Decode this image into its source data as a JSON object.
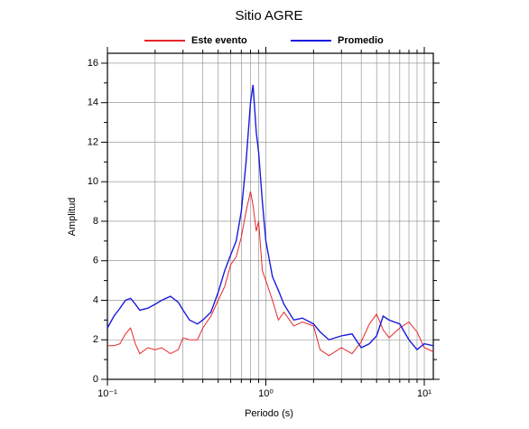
{
  "chart_data": {
    "type": "line",
    "title": "Sitio AGRE",
    "x_label": "Periodo (s)",
    "y_label": "Amplitud",
    "x": [
      0.1,
      0.11,
      0.12,
      0.13,
      0.14,
      0.15,
      0.16,
      0.18,
      0.2,
      0.22,
      0.25,
      0.28,
      0.3,
      0.33,
      0.37,
      0.4,
      0.45,
      0.5,
      0.55,
      0.6,
      0.65,
      0.7,
      0.75,
      0.8,
      0.83,
      0.87,
      0.9,
      0.95,
      1.0,
      1.1,
      1.2,
      1.3,
      1.5,
      1.7,
      2.0,
      2.2,
      2.5,
      3.0,
      3.5,
      4.0,
      4.5,
      5.0,
      5.5,
      6.0,
      7.0,
      8.0,
      9.0,
      10.0,
      11.4
    ],
    "series": [
      {
        "name": "Este evento",
        "color": "#e8262a",
        "values": [
          1.7,
          1.7,
          1.8,
          2.3,
          2.6,
          1.8,
          1.3,
          1.6,
          1.5,
          1.6,
          1.3,
          1.5,
          2.1,
          2.0,
          2.0,
          2.6,
          3.2,
          4.0,
          4.7,
          5.8,
          6.2,
          7.2,
          8.5,
          9.5,
          8.8,
          7.5,
          8.0,
          5.5,
          5.0,
          4.0,
          3.0,
          3.4,
          2.7,
          2.9,
          2.7,
          1.5,
          1.2,
          1.6,
          1.3,
          1.9,
          2.8,
          3.3,
          2.5,
          2.1,
          2.6,
          2.9,
          2.4,
          1.6,
          1.4
        ]
      },
      {
        "name": "Promedio",
        "color": "#1a1adf",
        "values": [
          2.6,
          3.2,
          3.6,
          4.0,
          4.1,
          3.8,
          3.5,
          3.6,
          3.8,
          4.0,
          4.2,
          3.9,
          3.5,
          3.0,
          2.8,
          3.0,
          3.4,
          4.4,
          5.5,
          6.3,
          7.0,
          8.5,
          11.0,
          14.0,
          14.9,
          12.5,
          11.5,
          9.0,
          7.0,
          5.2,
          4.5,
          3.8,
          3.0,
          3.1,
          2.8,
          2.4,
          2.0,
          2.2,
          2.3,
          1.6,
          1.8,
          2.2,
          3.2,
          3.0,
          2.8,
          2.0,
          1.5,
          1.8,
          1.7
        ]
      }
    ],
    "xscale": "log",
    "xlim": [
      0.1,
      11.4
    ],
    "xticks": [
      {
        "value": 0.1,
        "label": "10⁻¹"
      },
      {
        "value": 1,
        "label": "10⁰"
      },
      {
        "value": 10,
        "label": "10¹"
      }
    ],
    "xminorticks": [
      0.2,
      0.3,
      0.4,
      0.5,
      0.6,
      0.7,
      0.8,
      0.9,
      2,
      3,
      4,
      5,
      6,
      7,
      8,
      9
    ],
    "ylim": [
      0,
      16.5
    ],
    "yticks": [
      0,
      2,
      4,
      6,
      8,
      10,
      12,
      14,
      16
    ],
    "yminorticks": [
      1,
      3,
      5,
      7,
      9,
      11,
      13,
      15
    ],
    "grid": true
  }
}
